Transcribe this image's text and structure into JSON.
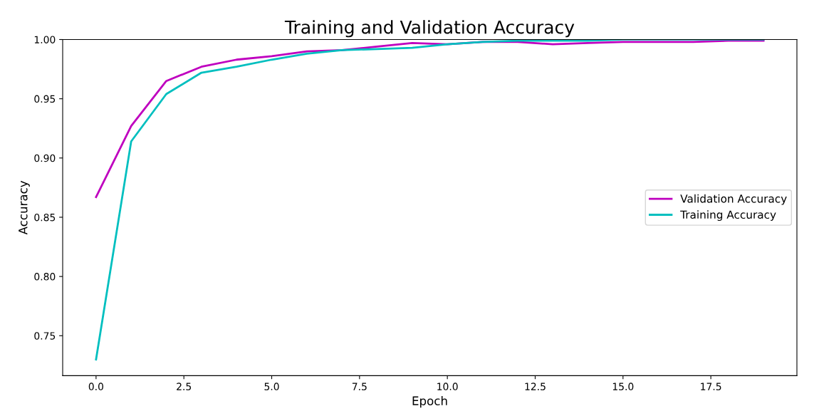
{
  "chart_data": {
    "type": "line",
    "title": "Training and Validation Accuracy",
    "xlabel": "Epoch",
    "ylabel": "Accuracy",
    "x": [
      0,
      1,
      2,
      3,
      4,
      5,
      6,
      7,
      8,
      9,
      10,
      11,
      12,
      13,
      14,
      15,
      16,
      17,
      18,
      19
    ],
    "series": [
      {
        "name": "Validation Accuracy",
        "color": "#bf00bf",
        "values": [
          0.867,
          0.927,
          0.965,
          0.977,
          0.983,
          0.986,
          0.99,
          0.991,
          0.994,
          0.997,
          0.996,
          0.998,
          0.998,
          0.996,
          0.997,
          0.998,
          0.998,
          0.998,
          0.999,
          0.999
        ]
      },
      {
        "name": "Training Accuracy",
        "color": "#00bfbf",
        "values": [
          0.73,
          0.914,
          0.954,
          0.972,
          0.977,
          0.983,
          0.988,
          0.991,
          0.992,
          0.993,
          0.996,
          0.998,
          0.999,
          0.999,
          0.999,
          1.0,
          1.0,
          1.0,
          1.0,
          1.0
        ]
      }
    ],
    "xlim": [
      -0.95,
      19.95
    ],
    "xticks": [
      {
        "value": 0,
        "label": "0.0"
      },
      {
        "value": 2.5,
        "label": "2.5"
      },
      {
        "value": 5,
        "label": "5.0"
      },
      {
        "value": 7.5,
        "label": "7.5"
      },
      {
        "value": 10,
        "label": "10.0"
      },
      {
        "value": 12.5,
        "label": "12.5"
      },
      {
        "value": 15,
        "label": "15.0"
      },
      {
        "value": 17.5,
        "label": "17.5"
      }
    ],
    "ylim": [
      0.7163,
      1.0
    ],
    "yticks": [
      {
        "value": 0.75,
        "label": "0.75"
      },
      {
        "value": 0.8,
        "label": "0.80"
      },
      {
        "value": 0.85,
        "label": "0.85"
      },
      {
        "value": 0.9,
        "label": "0.90"
      },
      {
        "value": 0.95,
        "label": "0.95"
      },
      {
        "value": 1.0,
        "label": "1.00"
      }
    ],
    "legend": "center right",
    "grid": false,
    "marker": "none",
    "line_style": "solid"
  }
}
